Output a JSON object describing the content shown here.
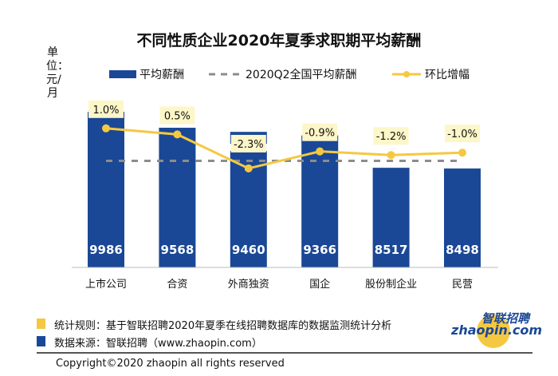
{
  "chart_data": {
    "type": "bar+line",
    "title": "不同性质企业2020年夏季求职期平均薪酬",
    "ylabel": "单位：元/月",
    "categories": [
      "上市公司",
      "合资",
      "外商独资",
      "国企",
      "股份制企业",
      "民营"
    ],
    "series": [
      {
        "name": "平均薪酬",
        "type": "bar",
        "values": [
          9986,
          9568,
          9460,
          9366,
          8517,
          8498
        ],
        "color": "#1a4896"
      },
      {
        "name": "2020Q2全国平均薪酬",
        "type": "dashed-reference",
        "value": 8700,
        "color": "#8c8c8c"
      },
      {
        "name": "环比增幅",
        "type": "line",
        "values": [
          1.0,
          0.5,
          -2.3,
          -0.9,
          -1.2,
          -1.0
        ],
        "labels": [
          "1.0%",
          "0.5%",
          "-2.3%",
          "-0.9%",
          "-1.2%",
          "-1.0%"
        ],
        "color": "#f5c842"
      }
    ],
    "ylim": [
      5900,
      10200
    ],
    "axis_break_on": "外商独资",
    "legend": "top",
    "grid": false
  },
  "footer": {
    "rule": "统计规则：基于智联招聘2020年夏季在线招聘数据库的数据监测统计分析",
    "source": "数据来源：智联招聘（www.zhaopin.com）",
    "copyright": "Copyright©2020 zhaopin all rights reserved",
    "logo_cn": "智联招聘",
    "logo_en": "zhaopin.com",
    "rule_color": "#f5c842",
    "source_color": "#1a4896"
  }
}
